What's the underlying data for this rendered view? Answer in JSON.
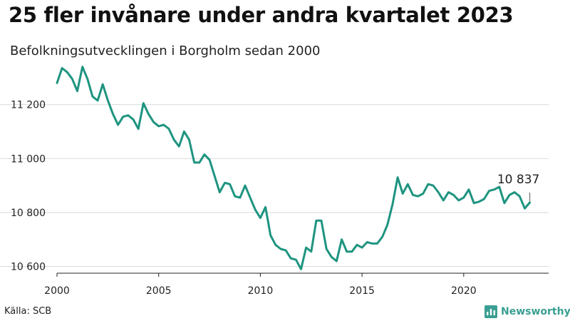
{
  "header": {
    "title": "25 fler invånare under andra kvartalet 2023",
    "subtitle": "Befolkningsutvecklingen i Borgholm sedan 2000"
  },
  "footer": {
    "source": "Källa: SCB",
    "brand": "Newsworthy"
  },
  "colors": {
    "line": "#1e9480",
    "grid": "#d9d9d9",
    "brand": "#3a9e92"
  },
  "chart_data": {
    "type": "line",
    "x_tick_labels": [
      "2000",
      "2005",
      "2010",
      "2015",
      "2020"
    ],
    "x_ticks": [
      2000,
      2005,
      2010,
      2015,
      2020
    ],
    "y_tick_labels": [
      "10 600",
      "10 800",
      "11 000",
      "11 200"
    ],
    "y_ticks": [
      10600,
      10800,
      11000,
      11200
    ],
    "xlim": [
      2000,
      2024
    ],
    "ylim": [
      10575,
      11310
    ],
    "grid": true,
    "last_value_label": "10 837",
    "series": [
      {
        "x": [
          "2000-Q1",
          "2000-Q2",
          "2000-Q3",
          "2000-Q4",
          "2001-Q1",
          "2001-Q2",
          "2001-Q3",
          "2001-Q4",
          "2002-Q1",
          "2002-Q2",
          "2002-Q3",
          "2002-Q4",
          "2003-Q1",
          "2003-Q2",
          "2003-Q3",
          "2003-Q4",
          "2004-Q1",
          "2004-Q2",
          "2004-Q3",
          "2004-Q4",
          "2005-Q1",
          "2005-Q2",
          "2005-Q3",
          "2005-Q4",
          "2006-Q1",
          "2006-Q2",
          "2006-Q3",
          "2006-Q4",
          "2007-Q1",
          "2007-Q2",
          "2007-Q3",
          "2007-Q4",
          "2008-Q1",
          "2008-Q2",
          "2008-Q3",
          "2008-Q4",
          "2009-Q1",
          "2009-Q2",
          "2009-Q3",
          "2009-Q4",
          "2010-Q1",
          "2010-Q2",
          "2010-Q3",
          "2010-Q4",
          "2011-Q1",
          "2011-Q2",
          "2011-Q3",
          "2011-Q4",
          "2012-Q1",
          "2012-Q2",
          "2012-Q3",
          "2012-Q4",
          "2013-Q1",
          "2013-Q2",
          "2013-Q3",
          "2013-Q4",
          "2014-Q1",
          "2014-Q2",
          "2014-Q3",
          "2014-Q4",
          "2015-Q1",
          "2015-Q2",
          "2015-Q3",
          "2015-Q4",
          "2016-Q1",
          "2016-Q2",
          "2016-Q3",
          "2016-Q4",
          "2017-Q1",
          "2017-Q2",
          "2017-Q3",
          "2017-Q4",
          "2018-Q1",
          "2018-Q2",
          "2018-Q3",
          "2018-Q4",
          "2019-Q1",
          "2019-Q2",
          "2019-Q3",
          "2019-Q4",
          "2020-Q1",
          "2020-Q2",
          "2020-Q3",
          "2020-Q4",
          "2021-Q1",
          "2021-Q2",
          "2021-Q3",
          "2021-Q4",
          "2022-Q1",
          "2022-Q2",
          "2022-Q3",
          "2022-Q4",
          "2023-Q1",
          "2023-Q2"
        ],
        "values": [
          11280,
          11335,
          11320,
          11295,
          11250,
          11340,
          11295,
          11230,
          11215,
          11275,
          11215,
          11165,
          11125,
          11155,
          11160,
          11145,
          11110,
          11205,
          11165,
          11135,
          11120,
          11125,
          11110,
          11070,
          11045,
          11100,
          11070,
          10985,
          10985,
          11015,
          10995,
          10935,
          10875,
          10910,
          10905,
          10860,
          10855,
          10900,
          10855,
          10810,
          10780,
          10820,
          10715,
          10680,
          10665,
          10660,
          10630,
          10625,
          10590,
          10670,
          10655,
          10770,
          10770,
          10665,
          10635,
          10620,
          10700,
          10655,
          10655,
          10680,
          10670,
          10690,
          10685,
          10685,
          10710,
          10755,
          10830,
          10930,
          10870,
          10905,
          10865,
          10860,
          10870,
          10905,
          10900,
          10875,
          10845,
          10875,
          10865,
          10845,
          10855,
          10885,
          10835,
          10840,
          10850,
          10880,
          10885,
          10895,
          10835,
          10865,
          10875,
          10860,
          10815,
          10837
        ]
      }
    ]
  }
}
